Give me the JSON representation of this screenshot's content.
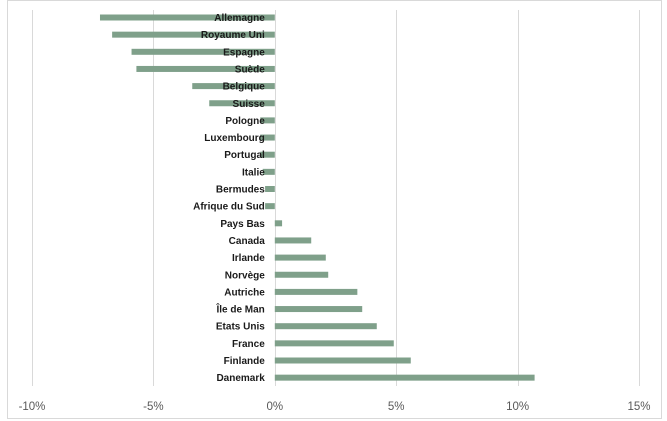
{
  "chart_data": {
    "type": "bar",
    "orientation": "horizontal",
    "title": "",
    "xlabel": "",
    "ylabel": "",
    "xlim": [
      -0.1,
      0.15
    ],
    "x_ticks": [
      -0.1,
      -0.05,
      0,
      0.05,
      0.1,
      0.15
    ],
    "x_tick_labels": [
      "-10%",
      "-5%",
      "0%",
      "5%",
      "10%",
      "15%"
    ],
    "grid": "vertical",
    "legend": "none",
    "bar_color": "#7fa08a",
    "categories": [
      "Allemagne",
      "Royaume Uni",
      "Espagne",
      "Suède",
      "Belgique",
      "Suisse",
      "Pologne",
      "Luxembourg",
      "Portugal",
      "Italie",
      "Bermudes",
      "Afrique du Sud",
      "Pays Bas",
      "Canada",
      "Irlande",
      "Norvège",
      "Autriche",
      "Île de Man",
      "Etats Unis",
      "France",
      "Finlande",
      "Danemark"
    ],
    "values": [
      -0.072,
      -0.067,
      -0.059,
      -0.057,
      -0.034,
      -0.027,
      -0.006,
      -0.006,
      -0.006,
      -0.005,
      -0.004,
      -0.004,
      0.003,
      0.015,
      0.021,
      0.022,
      0.034,
      0.036,
      0.042,
      0.049,
      0.056,
      0.107
    ]
  }
}
